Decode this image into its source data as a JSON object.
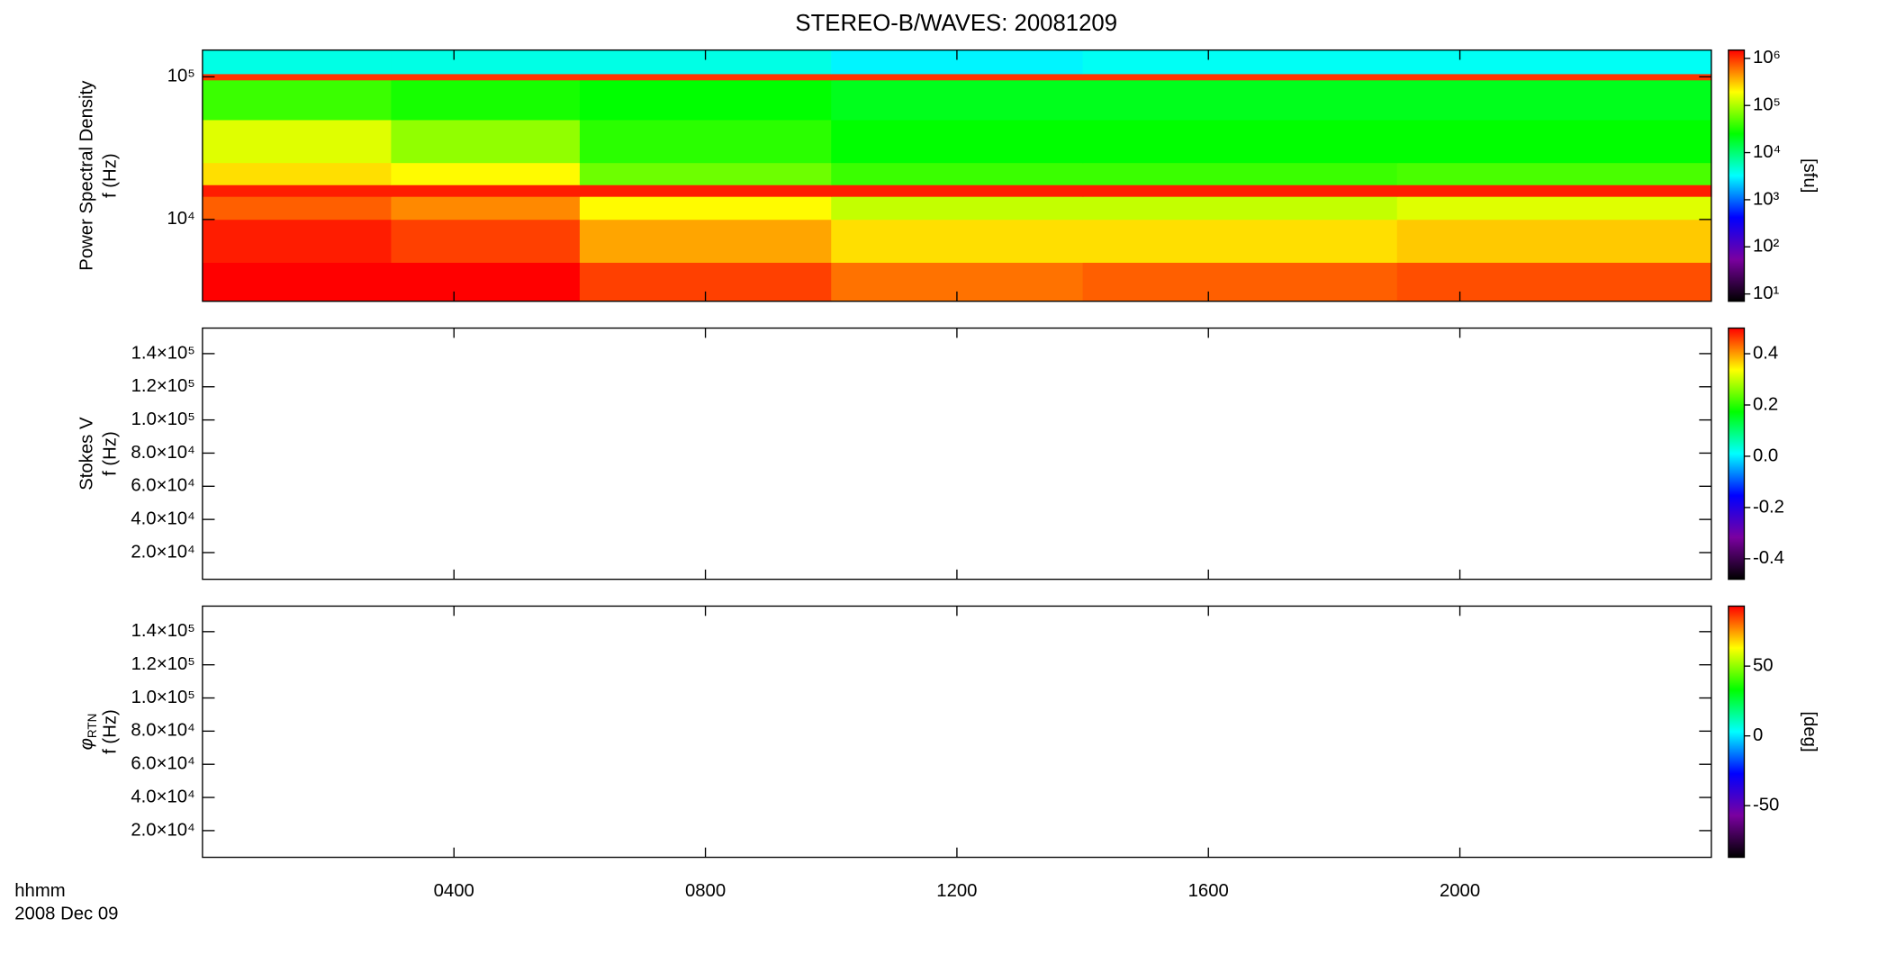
{
  "chart_data": [
    {
      "type": "heatmap",
      "title": "STEREO-B/WAVES: 20081209",
      "ylabel": "Power Spectral Density",
      "ylabel2": "f (Hz)",
      "ylog": true,
      "ylim": [
        2670,
        154000
      ],
      "yticks": [
        {
          "value": 10000,
          "label": "10⁴"
        },
        {
          "value": 100000,
          "label": "10⁵"
        }
      ],
      "xlim": [
        0,
        24
      ],
      "xticks": [
        4,
        8,
        12,
        16,
        20
      ],
      "x": [
        0,
        3,
        6,
        10,
        14,
        19,
        24
      ],
      "y": [
        2670,
        5000,
        10000,
        14500,
        17500,
        25000,
        50000,
        95000,
        105000,
        154000
      ],
      "z": [
        [
          1500000,
          1500000,
          900000,
          600000,
          700000,
          800000
        ],
        [
          1200000,
          900000,
          400000,
          250000,
          250000,
          300000
        ],
        [
          700000,
          500000,
          200000,
          120000,
          120000,
          150000
        ],
        [
          1200000,
          1200000,
          1200000,
          1200000,
          1200000,
          1200000
        ],
        [
          250000,
          200000,
          60000,
          40000,
          40000,
          45000
        ],
        [
          150000,
          80000,
          35000,
          25000,
          25000,
          25000
        ],
        [
          40000,
          30000,
          25000,
          20000,
          20000,
          20000
        ],
        [
          1000000,
          1000000,
          1000000,
          1000000,
          1000000,
          1000000
        ],
        [
          4000,
          4000,
          4000,
          3000,
          3500,
          3500
        ]
      ],
      "clog": true,
      "clim": [
        7,
        1500000
      ],
      "clabel": "[sfu]",
      "cticks": [
        {
          "value": 10,
          "label": "10¹"
        },
        {
          "value": 100,
          "label": "10²"
        },
        {
          "value": 1000,
          "label": "10³"
        },
        {
          "value": 10000,
          "label": "10⁴"
        },
        {
          "value": 100000,
          "label": "10⁵"
        },
        {
          "value": 1000000,
          "label": "10⁶"
        }
      ],
      "colors": [
        "#000000",
        "#7a00a0",
        "#0000ff",
        "#00ffff",
        "#00ff00",
        "#ffff00",
        "#ff0000"
      ]
    },
    {
      "type": "heatmap",
      "ylabel": "Stokes V",
      "ylabel2": "f (Hz)",
      "ylim": [
        3900,
        155400
      ],
      "yticks": [
        {
          "value": 20000,
          "label": "2.0×10⁴"
        },
        {
          "value": 40000,
          "label": "4.0×10⁴"
        },
        {
          "value": 60000,
          "label": "6.0×10⁴"
        },
        {
          "value": 80000,
          "label": "8.0×10⁴"
        },
        {
          "value": 100000,
          "label": "1.0×10⁵"
        },
        {
          "value": 120000,
          "label": "1.2×10⁵"
        },
        {
          "value": 140000,
          "label": "1.4×10⁵"
        }
      ],
      "xlim": [
        0,
        24
      ],
      "xticks": [
        4,
        8,
        12,
        16,
        20
      ],
      "clim": [
        -0.48,
        0.5
      ],
      "cticks": [
        -0.4,
        -0.2,
        {
          "value": 0,
          "label": "0.0"
        },
        0.2,
        0.4
      ],
      "colors": [
        "#000000",
        "#7a00a0",
        "#0000ff",
        "#00ffff",
        "#00ff00",
        "#ffff00",
        "#ff0000"
      ]
    },
    {
      "type": "heatmap",
      "ylabel": "φ",
      "ylabel_sub": "RTN",
      "ylabel2": "f (Hz)",
      "ylim": [
        3900,
        155400
      ],
      "yticks": [
        {
          "value": 20000,
          "label": "2.0×10⁴"
        },
        {
          "value": 40000,
          "label": "4.0×10⁴"
        },
        {
          "value": 60000,
          "label": "6.0×10⁴"
        },
        {
          "value": 80000,
          "label": "8.0×10⁴"
        },
        {
          "value": 100000,
          "label": "1.0×10⁵"
        },
        {
          "value": 120000,
          "label": "1.2×10⁵"
        },
        {
          "value": 140000,
          "label": "1.4×10⁵"
        }
      ],
      "xlim": [
        0,
        24
      ],
      "xticks": [
        {
          "value": 4,
          "label": "0400"
        },
        {
          "value": 8,
          "label": "0800"
        },
        {
          "value": 12,
          "label": "1200"
        },
        {
          "value": 16,
          "label": "1600"
        },
        {
          "value": 20,
          "label": "2000"
        }
      ],
      "xlabel": "hhmm",
      "date": "2008 Dec 09",
      "clim": [
        -87,
        93
      ],
      "clabel": "[deg]",
      "cticks": [
        -50,
        0,
        50
      ],
      "colors": [
        "#000000",
        "#7a00a0",
        "#0000ff",
        "#00ffff",
        "#00ff00",
        "#ffff00",
        "#ff0000"
      ]
    }
  ]
}
